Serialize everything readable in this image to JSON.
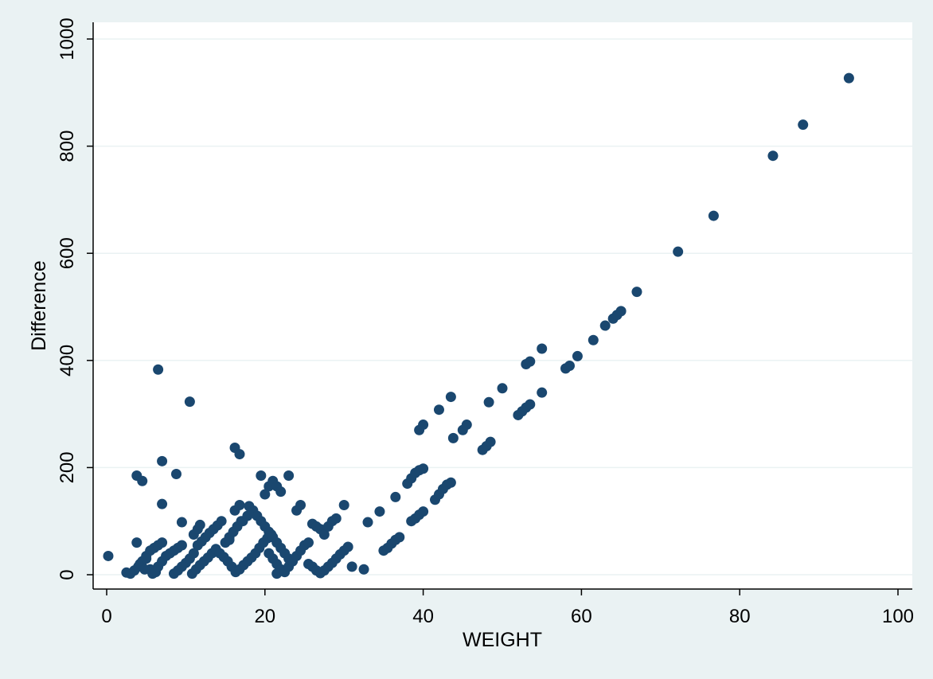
{
  "chart_data": {
    "type": "scatter",
    "title": "",
    "xlabel": "WEIGHT",
    "ylabel": "Difference",
    "xlim": [
      0,
      100
    ],
    "ylim": [
      0,
      1000
    ],
    "xticks": [
      "0",
      "20",
      "40",
      "60",
      "80",
      "100"
    ],
    "yticks": [
      "0",
      "200",
      "400",
      "600",
      "800",
      "1000"
    ],
    "grid": "horizontal",
    "colors": {
      "marker": "#1a476f",
      "background": "#eaf2f3",
      "plot_area": "#ffffff",
      "grid": "#eaf2f3"
    },
    "points": [
      [
        0.2,
        35
      ],
      [
        2.5,
        4
      ],
      [
        3,
        2
      ],
      [
        3.5,
        8
      ],
      [
        4,
        15
      ],
      [
        4.5,
        25
      ],
      [
        5,
        35
      ],
      [
        5.5,
        45
      ],
      [
        6,
        50
      ],
      [
        3.8,
        60
      ],
      [
        4.2,
        20
      ],
      [
        5,
        30
      ],
      [
        5.5,
        10
      ],
      [
        5.8,
        2
      ],
      [
        6.2,
        5
      ],
      [
        6.5,
        15
      ],
      [
        7,
        25
      ],
      [
        7.5,
        35
      ],
      [
        8,
        40
      ],
      [
        8.5,
        45
      ],
      [
        9,
        50
      ],
      [
        9.5,
        55
      ],
      [
        6.5,
        55
      ],
      [
        7,
        60
      ],
      [
        4.8,
        10
      ],
      [
        8.5,
        2
      ],
      [
        9,
        8
      ],
      [
        9.5,
        15
      ],
      [
        10,
        22
      ],
      [
        10.5,
        30
      ],
      [
        11,
        40
      ],
      [
        11.5,
        55
      ],
      [
        12,
        62
      ],
      [
        12.5,
        70
      ],
      [
        13,
        78
      ],
      [
        13.5,
        85
      ],
      [
        14,
        92
      ],
      [
        14.5,
        100
      ],
      [
        11,
        75
      ],
      [
        11.5,
        85
      ],
      [
        11.8,
        93
      ],
      [
        10.8,
        2
      ],
      [
        11.3,
        10
      ],
      [
        11.8,
        18
      ],
      [
        12.3,
        25
      ],
      [
        12.8,
        32
      ],
      [
        13.3,
        40
      ],
      [
        13.8,
        48
      ],
      [
        14.3,
        40
      ],
      [
        14.8,
        33
      ],
      [
        15.3,
        25
      ],
      [
        15.8,
        15
      ],
      [
        16.3,
        5
      ],
      [
        16.8,
        10
      ],
      [
        17.3,
        18
      ],
      [
        17.8,
        25
      ],
      [
        18.3,
        32
      ],
      [
        18.8,
        40
      ],
      [
        19.3,
        50
      ],
      [
        19.8,
        60
      ],
      [
        20.3,
        68
      ],
      [
        20.8,
        75
      ],
      [
        15,
        60
      ],
      [
        15.5,
        70
      ],
      [
        16,
        80
      ],
      [
        16.5,
        90
      ],
      [
        17,
        100
      ],
      [
        15.5,
        65
      ],
      [
        16.2,
        120
      ],
      [
        16.8,
        130
      ],
      [
        17.2,
        100
      ],
      [
        17.8,
        110
      ],
      [
        18,
        128
      ],
      [
        18.5,
        120
      ],
      [
        19,
        110
      ],
      [
        19.5,
        100
      ],
      [
        20,
        90
      ],
      [
        20.5,
        80
      ],
      [
        21,
        70
      ],
      [
        21.5,
        60
      ],
      [
        22,
        50
      ],
      [
        22.5,
        40
      ],
      [
        23,
        30
      ],
      [
        20.5,
        40
      ],
      [
        21,
        30
      ],
      [
        21.5,
        20
      ],
      [
        22,
        10
      ],
      [
        21.5,
        2
      ],
      [
        22.5,
        5
      ],
      [
        23,
        15
      ],
      [
        23.5,
        25
      ],
      [
        24,
        35
      ],
      [
        24.5,
        45
      ],
      [
        25,
        55
      ],
      [
        25.5,
        60
      ],
      [
        20,
        150
      ],
      [
        20.5,
        165
      ],
      [
        21,
        175
      ],
      [
        21.5,
        165
      ],
      [
        22,
        155
      ],
      [
        19.5,
        185
      ],
      [
        23,
        185
      ],
      [
        24,
        120
      ],
      [
        24.5,
        130
      ],
      [
        25.5,
        20
      ],
      [
        26,
        15
      ],
      [
        26.5,
        8
      ],
      [
        27,
        3
      ],
      [
        27.5,
        8
      ],
      [
        28,
        15
      ],
      [
        28.5,
        22
      ],
      [
        29,
        30
      ],
      [
        29.5,
        38
      ],
      [
        30,
        45
      ],
      [
        30.5,
        52
      ],
      [
        26,
        95
      ],
      [
        26.5,
        90
      ],
      [
        27,
        85
      ],
      [
        27.5,
        75
      ],
      [
        28,
        90
      ],
      [
        28.5,
        100
      ],
      [
        29,
        105
      ],
      [
        30,
        130
      ],
      [
        31,
        15
      ],
      [
        32.5,
        10
      ],
      [
        3.8,
        185
      ],
      [
        4.5,
        175
      ],
      [
        7,
        212
      ],
      [
        8.8,
        188
      ],
      [
        7,
        132
      ],
      [
        9.5,
        98
      ],
      [
        6.5,
        383
      ],
      [
        10.5,
        323
      ],
      [
        16.2,
        237
      ],
      [
        16.8,
        225
      ],
      [
        33,
        98
      ],
      [
        34.5,
        118
      ],
      [
        35,
        45
      ],
      [
        35.5,
        50
      ],
      [
        36,
        58
      ],
      [
        36.5,
        65
      ],
      [
        37,
        70
      ],
      [
        36.5,
        145
      ],
      [
        38,
        170
      ],
      [
        38.5,
        180
      ],
      [
        39,
        190
      ],
      [
        39.5,
        195
      ],
      [
        40,
        198
      ],
      [
        38.5,
        100
      ],
      [
        39,
        105
      ],
      [
        39.5,
        112
      ],
      [
        40,
        118
      ],
      [
        39.5,
        270
      ],
      [
        40,
        280
      ],
      [
        41.5,
        140
      ],
      [
        42,
        150
      ],
      [
        42.5,
        160
      ],
      [
        43,
        168
      ],
      [
        43.5,
        172
      ],
      [
        42,
        308
      ],
      [
        43.5,
        332
      ],
      [
        43.8,
        255
      ],
      [
        45,
        270
      ],
      [
        45.5,
        280
      ],
      [
        47.5,
        233
      ],
      [
        48,
        240
      ],
      [
        48.5,
        248
      ],
      [
        48.3,
        322
      ],
      [
        50,
        348
      ],
      [
        52,
        298
      ],
      [
        52.5,
        305
      ],
      [
        53,
        312
      ],
      [
        53.5,
        318
      ],
      [
        53,
        393
      ],
      [
        53.5,
        398
      ],
      [
        55,
        422
      ],
      [
        55,
        340
      ],
      [
        58,
        385
      ],
      [
        58.5,
        390
      ],
      [
        59.5,
        408
      ],
      [
        61.5,
        438
      ],
      [
        63,
        465
      ],
      [
        64,
        478
      ],
      [
        64.5,
        485
      ],
      [
        65,
        492
      ],
      [
        67,
        528
      ],
      [
        72.2,
        603
      ],
      [
        76.7,
        670
      ],
      [
        84.2,
        782
      ],
      [
        88,
        840
      ],
      [
        93.8,
        927
      ]
    ]
  }
}
